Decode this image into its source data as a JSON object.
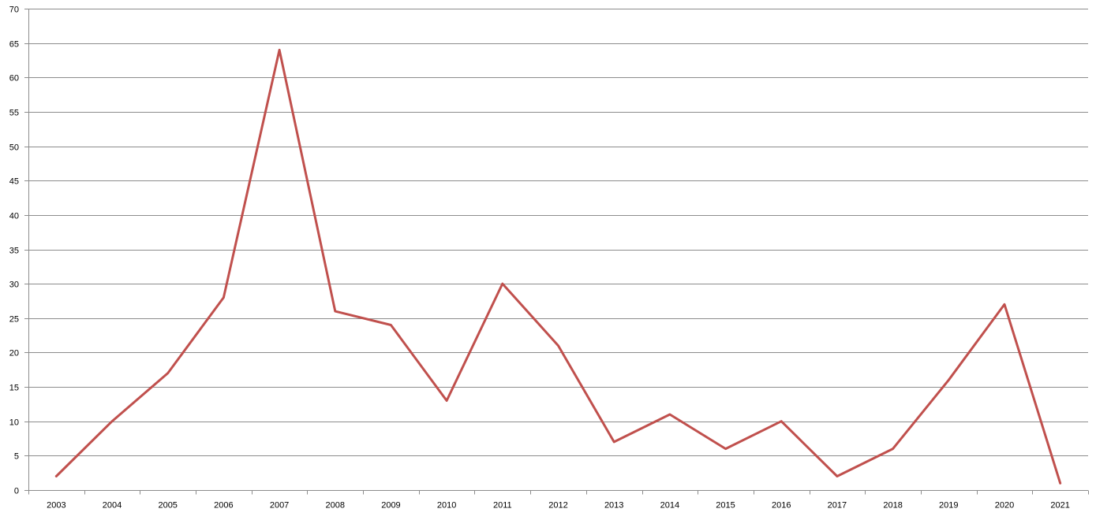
{
  "chart_data": {
    "type": "line",
    "title": "",
    "xlabel": "",
    "ylabel": "",
    "categories": [
      "2003",
      "2004",
      "2005",
      "2006",
      "2007",
      "2008",
      "2009",
      "2010",
      "2011",
      "2012",
      "2013",
      "2014",
      "2015",
      "2016",
      "2017",
      "2018",
      "2019",
      "2020",
      "2021"
    ],
    "series": [
      {
        "color": "#c0504d",
        "values": [
          2,
          10,
          17,
          28,
          64,
          26,
          24,
          13,
          30,
          21,
          7,
          11,
          6,
          10,
          2,
          6,
          16,
          27,
          1
        ]
      }
    ],
    "ylim": [
      0,
      70
    ],
    "ytick_step": 5,
    "grid": true,
    "legend": "none",
    "colors": {
      "gridline": "#8c8c8c",
      "text": "#000000"
    }
  }
}
